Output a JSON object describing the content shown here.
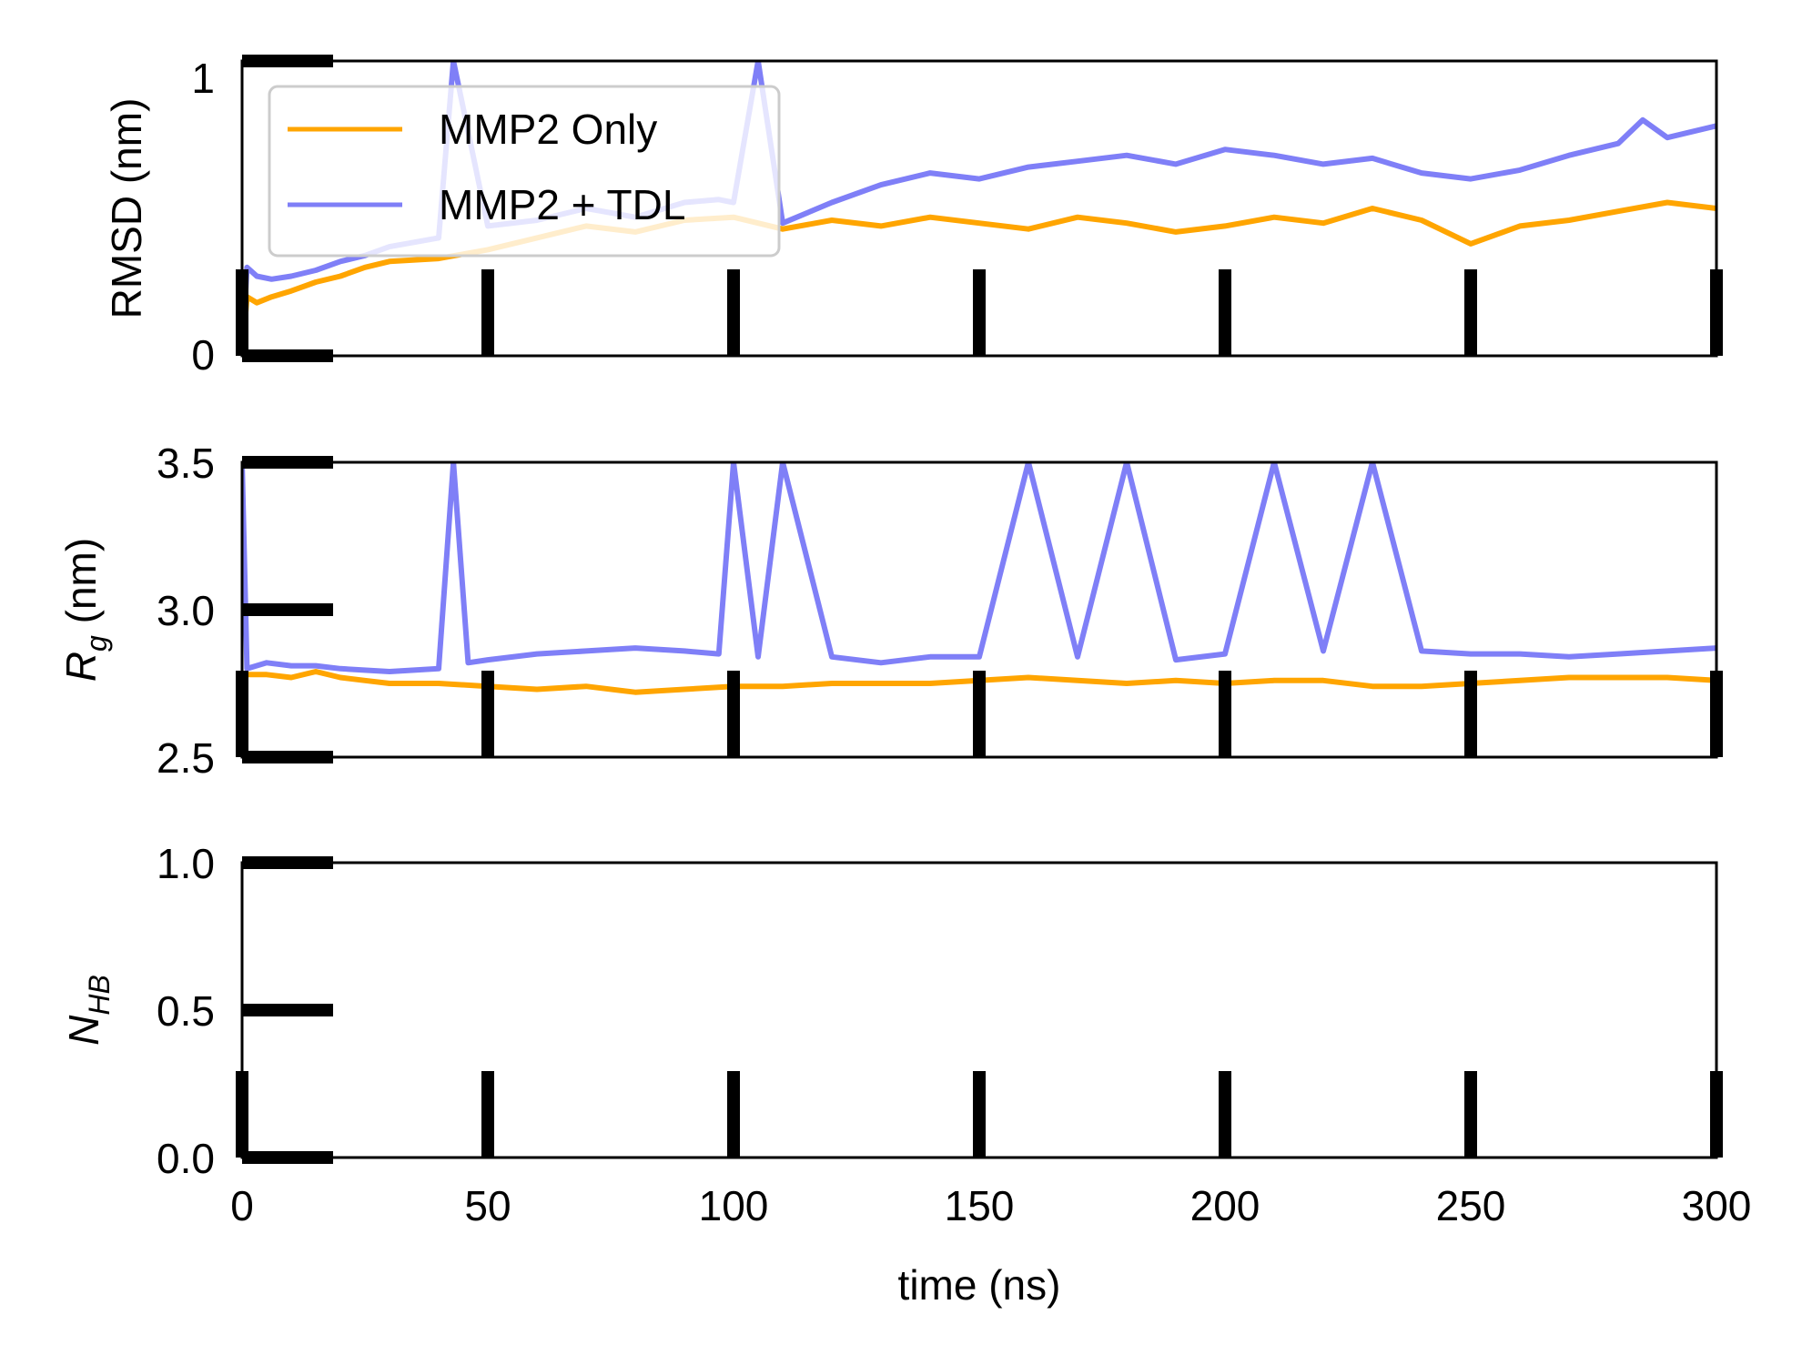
{
  "colors": {
    "mmp2_only": "#ffa500",
    "mmp2_tdl": "#7f7ff7",
    "frame": "#000000"
  },
  "x_axis": {
    "label": "time (ns)",
    "ticks": [
      "0",
      "50",
      "100",
      "150",
      "200",
      "250",
      "300"
    ]
  },
  "legend": {
    "placement": "upper-left of top panel",
    "entries": [
      "MMP2 Only",
      "MMP2 + TDL"
    ]
  },
  "chart_data": [
    {
      "type": "line",
      "ylabel": "RMSD (nm)",
      "xlim": [
        0,
        300
      ],
      "ylim": [
        0,
        1
      ],
      "yticks": [
        "0",
        "1"
      ],
      "grid": false,
      "series": [
        {
          "name": "MMP2 Only",
          "x": [
            0,
            1,
            3,
            6,
            10,
            15,
            20,
            25,
            30,
            40,
            50,
            60,
            70,
            80,
            90,
            100,
            110,
            120,
            130,
            140,
            150,
            160,
            170,
            180,
            190,
            200,
            210,
            220,
            230,
            240,
            250,
            260,
            270,
            280,
            290,
            300
          ],
          "y": [
            0.0,
            0.2,
            0.18,
            0.2,
            0.22,
            0.25,
            0.27,
            0.3,
            0.32,
            0.33,
            0.36,
            0.4,
            0.44,
            0.42,
            0.46,
            0.47,
            0.43,
            0.46,
            0.44,
            0.47,
            0.45,
            0.43,
            0.47,
            0.45,
            0.42,
            0.44,
            0.47,
            0.45,
            0.5,
            0.46,
            0.38,
            0.44,
            0.46,
            0.49,
            0.52,
            0.5
          ]
        },
        {
          "name": "MMP2 + TDL",
          "x": [
            0,
            1,
            3,
            6,
            10,
            15,
            20,
            25,
            30,
            40,
            43,
            50,
            60,
            70,
            80,
            90,
            97,
            100,
            105,
            110,
            120,
            130,
            140,
            150,
            160,
            170,
            180,
            190,
            200,
            210,
            220,
            230,
            240,
            250,
            260,
            270,
            280,
            285,
            290,
            300
          ],
          "y": [
            0.0,
            0.3,
            0.27,
            0.26,
            0.27,
            0.29,
            0.32,
            0.34,
            0.37,
            0.4,
            1.0,
            0.44,
            0.46,
            0.5,
            0.47,
            0.52,
            0.53,
            0.52,
            1.0,
            0.45,
            0.52,
            0.58,
            0.62,
            0.6,
            0.64,
            0.66,
            0.68,
            0.65,
            0.7,
            0.68,
            0.65,
            0.67,
            0.62,
            0.6,
            0.63,
            0.68,
            0.72,
            0.8,
            0.74,
            0.78
          ]
        }
      ]
    },
    {
      "type": "line",
      "ylabel": "R_g (nm)",
      "xlim": [
        0,
        300
      ],
      "ylim": [
        2.5,
        3.5
      ],
      "yticks": [
        "2.5",
        "3.0",
        "3.5"
      ],
      "grid": false,
      "series": [
        {
          "name": "MMP2 Only",
          "x": [
            0,
            5,
            10,
            15,
            20,
            25,
            30,
            40,
            50,
            60,
            70,
            80,
            90,
            100,
            110,
            120,
            130,
            140,
            150,
            160,
            170,
            180,
            190,
            200,
            210,
            220,
            230,
            240,
            250,
            260,
            270,
            280,
            290,
            300
          ],
          "y": [
            2.78,
            2.78,
            2.77,
            2.79,
            2.77,
            2.76,
            2.75,
            2.75,
            2.74,
            2.73,
            2.74,
            2.72,
            2.73,
            2.74,
            2.74,
            2.75,
            2.75,
            2.75,
            2.76,
            2.77,
            2.76,
            2.75,
            2.76,
            2.75,
            2.76,
            2.76,
            2.74,
            2.74,
            2.75,
            2.76,
            2.77,
            2.77,
            2.77,
            2.76
          ]
        },
        {
          "name": "MMP2 + TDL",
          "x": [
            0,
            1,
            5,
            10,
            15,
            20,
            30,
            40,
            43,
            46,
            50,
            60,
            70,
            80,
            90,
            97,
            100,
            105,
            110,
            120,
            130,
            140,
            150,
            160,
            170,
            180,
            190,
            200,
            210,
            220,
            230,
            240,
            250,
            260,
            270,
            280,
            290,
            300
          ],
          "y": [
            3.5,
            2.8,
            2.82,
            2.81,
            2.81,
            2.8,
            2.79,
            2.8,
            3.5,
            2.82,
            2.83,
            2.85,
            2.86,
            2.87,
            2.86,
            2.85,
            3.5,
            2.84,
            3.5,
            2.84,
            2.82,
            2.84,
            2.84,
            3.5,
            2.84,
            3.5,
            2.83,
            2.85,
            3.5,
            2.86,
            3.5,
            2.86,
            2.85,
            2.85,
            2.84,
            2.85,
            2.86,
            2.87
          ]
        }
      ]
    },
    {
      "type": "line",
      "ylabel": "N_HB",
      "xlim": [
        0,
        300
      ],
      "ylim": [
        0.0,
        1.0
      ],
      "yticks": [
        "0.0",
        "0.5",
        "1.0"
      ],
      "grid": false,
      "series": []
    }
  ]
}
